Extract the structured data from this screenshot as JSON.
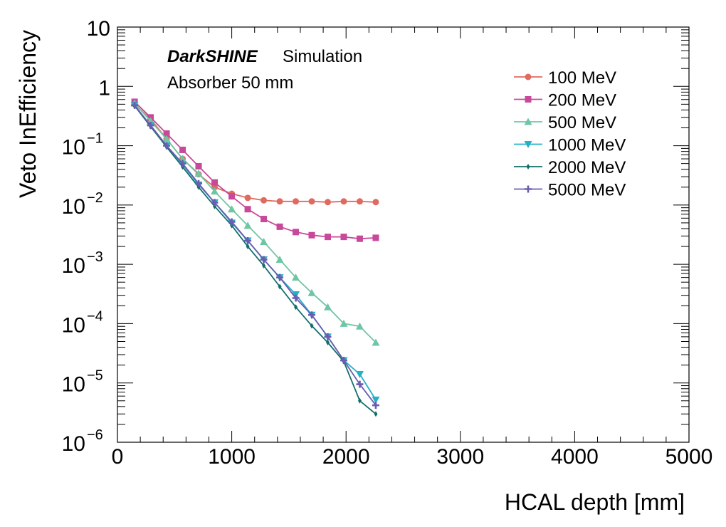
{
  "chart_data": {
    "type": "line",
    "yscale": "log",
    "xlabel": "HCAL depth [mm]",
    "ylabel": "Veto InEfficiency",
    "xlim": [
      0,
      5000
    ],
    "ylim": [
      1e-06,
      10
    ],
    "x_ticks": [
      0,
      1000,
      2000,
      3000,
      4000,
      5000
    ],
    "x_tick_labels": [
      "0",
      "1000",
      "2000",
      "3000",
      "4000",
      "5000"
    ],
    "y_ticks": [
      {
        "value": 1e-06,
        "base": "10",
        "exp": "−6"
      },
      {
        "value": 1e-05,
        "base": "10",
        "exp": "−5"
      },
      {
        "value": 0.0001,
        "base": "10",
        "exp": "−4"
      },
      {
        "value": 0.001,
        "base": "10",
        "exp": "−3"
      },
      {
        "value": 0.01,
        "base": "10",
        "exp": "−2"
      },
      {
        "value": 0.1,
        "base": "10",
        "exp": "−1"
      },
      {
        "value": 1,
        "base": "1",
        "exp": ""
      },
      {
        "value": 10,
        "base": "10",
        "exp": ""
      }
    ],
    "annotations": {
      "brand": "DarkSHINE",
      "tag": "Simulation",
      "subtitle": "Absorber 50 mm"
    },
    "legend_position": "top-right",
    "x": [
      150,
      290,
      430,
      570,
      710,
      850,
      1000,
      1140,
      1280,
      1420,
      1560,
      1700,
      1840,
      1980,
      2120,
      2260
    ],
    "series": [
      {
        "name": "100 MeV",
        "color": "#e06a60",
        "marker": "circle",
        "values": [
          0.5,
          0.28,
          0.13,
          0.06,
          0.033,
          0.02,
          0.0155,
          0.0132,
          0.012,
          0.0115,
          0.0115,
          0.0115,
          0.0112,
          0.0115,
          0.0115,
          0.0112
        ]
      },
      {
        "name": "200 MeV",
        "color": "#c8489a",
        "marker": "square",
        "values": [
          0.55,
          0.3,
          0.16,
          0.085,
          0.045,
          0.024,
          0.014,
          0.0085,
          0.0058,
          0.0043,
          0.0035,
          0.0031,
          0.0029,
          0.0029,
          0.0027,
          0.0028
        ]
      },
      {
        "name": "500 MeV",
        "color": "#6fc6a4",
        "marker": "triangle-up",
        "values": [
          0.52,
          0.26,
          0.13,
          0.06,
          0.034,
          0.017,
          0.0085,
          0.0045,
          0.0024,
          0.0012,
          0.0006,
          0.00033,
          0.00019,
          0.0001,
          9e-05,
          4.8e-05
        ]
      },
      {
        "name": "1000 MeV",
        "color": "#24b0c8",
        "marker": "triangle-down",
        "values": [
          0.48,
          0.22,
          0.1,
          0.048,
          0.022,
          0.011,
          0.005,
          0.0025,
          0.0012,
          0.0006,
          0.00031,
          0.00014,
          6e-05,
          2.4e-05,
          1.4e-05,
          5.2e-06
        ]
      },
      {
        "name": "2000 MeV",
        "color": "#136e6a",
        "marker": "diamond",
        "values": [
          0.47,
          0.21,
          0.095,
          0.044,
          0.02,
          0.0095,
          0.0045,
          0.002,
          0.00095,
          0.00042,
          0.00019,
          9.2e-05,
          4.8e-05,
          2.3e-05,
          5e-06,
          3e-06
        ]
      },
      {
        "name": "5000 MeV",
        "color": "#6a5cb0",
        "marker": "cross",
        "values": [
          0.48,
          0.22,
          0.1,
          0.05,
          0.023,
          0.011,
          0.0052,
          0.0025,
          0.0012,
          0.0006,
          0.00027,
          0.00014,
          6e-05,
          2.4e-05,
          9.5e-06,
          4.2e-06
        ]
      }
    ]
  }
}
